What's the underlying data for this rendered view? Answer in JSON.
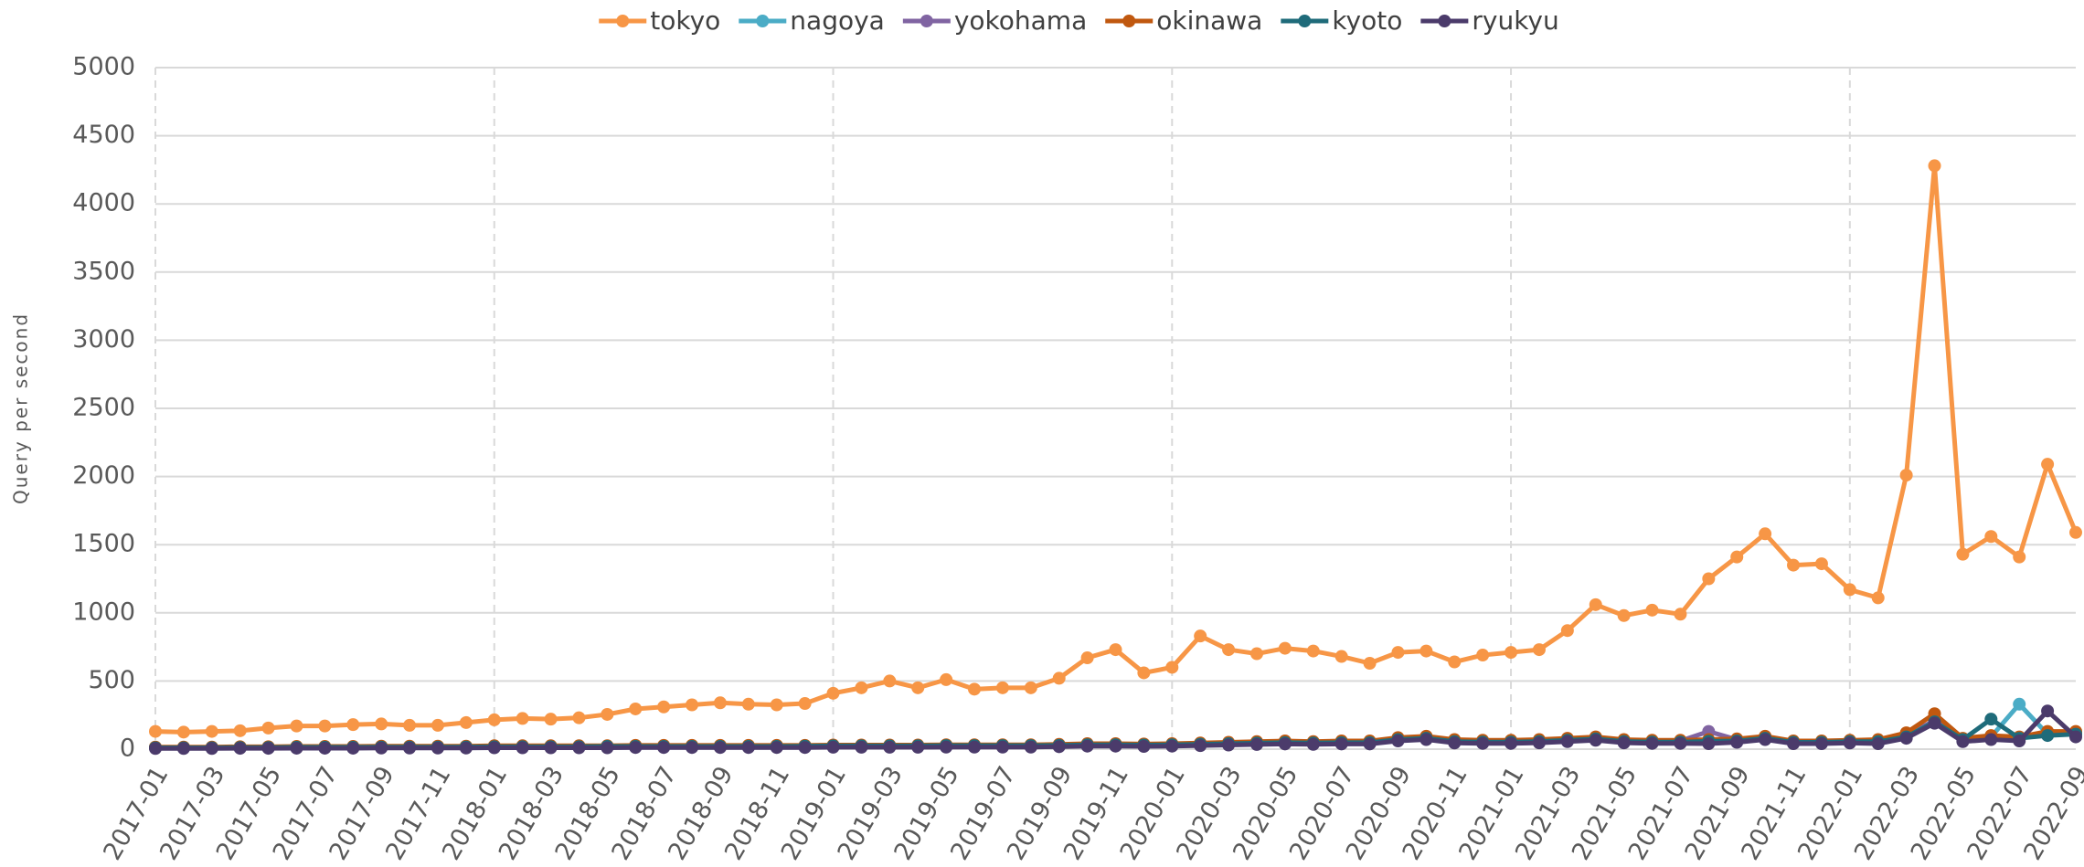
{
  "chart_data": {
    "type": "line",
    "y_label": "Query per second",
    "categories": [
      "2017-01",
      null,
      "2017-03",
      null,
      "2017-05",
      null,
      "2017-07",
      null,
      "2017-09",
      null,
      "2017-11",
      null,
      "2018-01",
      null,
      "2018-03",
      null,
      "2018-05",
      null,
      "2018-07",
      null,
      "2018-09",
      null,
      "2018-11",
      null,
      "2019-01",
      null,
      "2019-03",
      null,
      "2019-05",
      null,
      "2019-07",
      null,
      "2019-09",
      null,
      "2019-11",
      null,
      "2020-01",
      null,
      "2020-03",
      null,
      "2020-05",
      null,
      "2020-07",
      null,
      "2020-09",
      null,
      "2020-11",
      null,
      "2021-01",
      null,
      "2021-03",
      null,
      "2021-05",
      null,
      "2021-07",
      null,
      "2021-09",
      null,
      "2021-11",
      null,
      "2022-01",
      null,
      "2022-03",
      null,
      "2022-05",
      null,
      "2022-07",
      null,
      "2022-09"
    ],
    "series": [
      {
        "name": "tokyo",
        "color": "#f79646",
        "values": [
          130,
          125,
          130,
          135,
          155,
          170,
          170,
          180,
          185,
          175,
          175,
          195,
          215,
          225,
          220,
          230,
          255,
          295,
          310,
          325,
          340,
          330,
          325,
          335,
          410,
          450,
          500,
          450,
          510,
          440,
          450,
          450,
          520,
          670,
          730,
          560,
          600,
          830,
          730,
          700,
          740,
          720,
          680,
          630,
          710,
          720,
          640,
          690,
          710,
          730,
          870,
          1060,
          980,
          1020,
          990,
          1250,
          1410,
          1580,
          1350,
          1360,
          1170,
          1110,
          2010,
          4280,
          1430,
          1560,
          1410,
          2090,
          1590
        ]
      },
      {
        "name": "nagoya",
        "color": "#4bacc6",
        "values": [
          10,
          10,
          10,
          12,
          12,
          14,
          14,
          14,
          15,
          15,
          15,
          16,
          18,
          18,
          18,
          18,
          20,
          20,
          20,
          20,
          20,
          20,
          20,
          22,
          24,
          24,
          24,
          24,
          26,
          26,
          26,
          26,
          28,
          32,
          32,
          30,
          32,
          36,
          40,
          44,
          48,
          45,
          48,
          48,
          70,
          80,
          55,
          52,
          52,
          56,
          65,
          75,
          56,
          52,
          52,
          58,
          60,
          80,
          50,
          50,
          55,
          55,
          90,
          200,
          60,
          90,
          330,
          110,
          110
        ]
      },
      {
        "name": "yokohama",
        "color": "#8064a2",
        "values": [
          12,
          12,
          12,
          15,
          15,
          17,
          17,
          17,
          19,
          19,
          19,
          19,
          22,
          22,
          22,
          22,
          22,
          25,
          25,
          25,
          25,
          25,
          25,
          25,
          27,
          27,
          27,
          27,
          29,
          29,
          29,
          29,
          32,
          36,
          36,
          34,
          36,
          41,
          45,
          50,
          54,
          50,
          54,
          54,
          77,
          86,
          63,
          58,
          60,
          65,
          75,
          85,
          65,
          60,
          60,
          130,
          70,
          90,
          55,
          55,
          60,
          60,
          100,
          210,
          70,
          85,
          80,
          120,
          120
        ]
      },
      {
        "name": "okinawa",
        "color": "#c0580f",
        "values": [
          15,
          15,
          15,
          18,
          18,
          20,
          20,
          20,
          22,
          22,
          22,
          22,
          25,
          25,
          25,
          25,
          25,
          28,
          28,
          28,
          28,
          28,
          28,
          28,
          30,
          30,
          30,
          30,
          32,
          32,
          32,
          32,
          35,
          40,
          40,
          38,
          40,
          45,
          50,
          55,
          60,
          55,
          60,
          60,
          85,
          95,
          70,
          65,
          65,
          70,
          80,
          90,
          70,
          65,
          65,
          70,
          75,
          95,
          60,
          60,
          65,
          70,
          120,
          260,
          80,
          100,
          90,
          130,
          130
        ]
      },
      {
        "name": "kyoto",
        "color": "#1f6b7a",
        "values": [
          10,
          10,
          10,
          12,
          12,
          14,
          14,
          14,
          15,
          15,
          15,
          16,
          18,
          18,
          18,
          18,
          20,
          20,
          20,
          20,
          20,
          20,
          20,
          22,
          24,
          24,
          24,
          24,
          26,
          26,
          26,
          26,
          28,
          32,
          32,
          30,
          32,
          36,
          40,
          44,
          48,
          45,
          48,
          48,
          70,
          80,
          55,
          52,
          52,
          56,
          65,
          75,
          56,
          52,
          52,
          58,
          60,
          80,
          50,
          50,
          55,
          55,
          90,
          200,
          70,
          220,
          80,
          100,
          110
        ]
      },
      {
        "name": "ryukyu",
        "color": "#4b3b6b",
        "values": [
          5,
          5,
          5,
          6,
          6,
          7,
          7,
          7,
          8,
          8,
          8,
          8,
          10,
          10,
          10,
          10,
          10,
          12,
          12,
          12,
          12,
          12,
          12,
          12,
          14,
          14,
          14,
          14,
          15,
          15,
          15,
          15,
          18,
          22,
          22,
          20,
          22,
          26,
          30,
          34,
          38,
          35,
          38,
          38,
          60,
          70,
          45,
          42,
          42,
          46,
          55,
          65,
          46,
          42,
          42,
          40,
          50,
          70,
          40,
          40,
          45,
          40,
          80,
          190,
          55,
          70,
          60,
          280,
          90
        ]
      }
    ],
    "ylim": [
      0,
      5000
    ],
    "yticks": [
      0,
      500,
      1000,
      1500,
      2000,
      2500,
      3000,
      3500,
      4000,
      4500,
      5000
    ],
    "grid": true,
    "legend": "top"
  }
}
